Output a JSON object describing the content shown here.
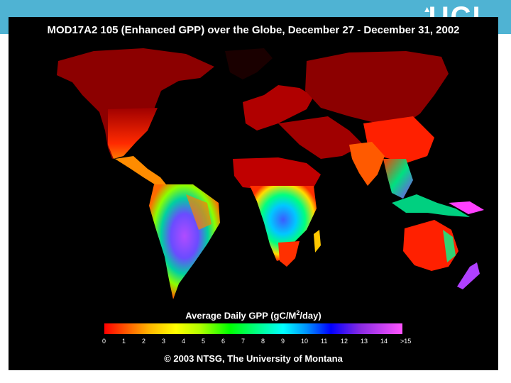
{
  "header": {
    "logo_text": "UCL",
    "band_color": "#4fb3d3"
  },
  "map": {
    "title": "MOD17A2 105 (Enhanced GPP) over the Globe, December 27 - December 31, 2002",
    "legend": {
      "title_before_sup": "Average Daily GPP (gC/M",
      "title_sup": "2",
      "title_after_sup": "/day)",
      "ticks": [
        "0",
        "1",
        "2",
        "3",
        "4",
        "5",
        "6",
        "7",
        "8",
        "9",
        "10",
        "11",
        "12",
        "13",
        "14",
        ">15"
      ]
    },
    "copyright": "© 2003 NTSG, The University of Montana",
    "background_color": "#000000"
  }
}
